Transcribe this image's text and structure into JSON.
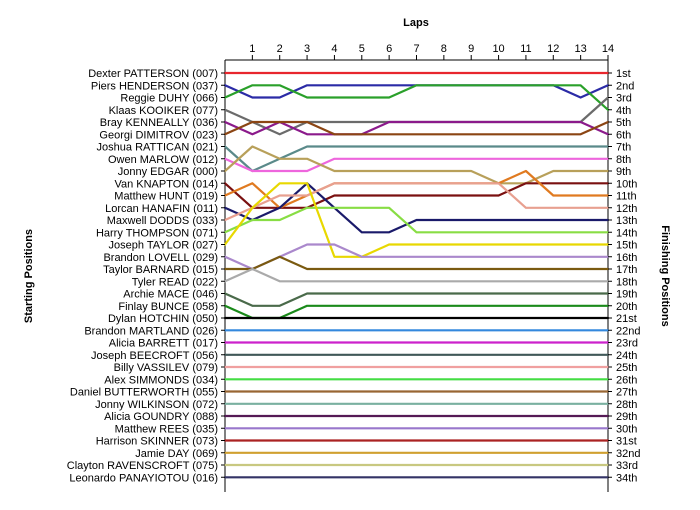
{
  "chart_data": {
    "type": "line",
    "title": "Laps",
    "ylabel_left": "Starting Positions",
    "ylabel_right": "Finishing Positions",
    "x_ticks": [
      1,
      2,
      3,
      4,
      5,
      6,
      7,
      8,
      9,
      10,
      11,
      12,
      13,
      14
    ],
    "x_range": [
      0,
      14
    ],
    "finishing_positions": [
      "1st",
      "2nd",
      "3rd",
      "4th",
      "5th",
      "6th",
      "7th",
      "8th",
      "9th",
      "10th",
      "11th",
      "12th",
      "13th",
      "14th",
      "15th",
      "16th",
      "17th",
      "18th",
      "19th",
      "20th",
      "21st",
      "22nd",
      "23rd",
      "24th",
      "25th",
      "26th",
      "27th",
      "28th",
      "29th",
      "30th",
      "31st",
      "32nd",
      "33rd",
      "34th"
    ],
    "series": [
      {
        "name": "Dexter PATTERSON (007)",
        "color": "#e8262d",
        "positions": [
          1,
          1,
          1,
          1,
          1,
          1,
          1,
          1,
          1,
          1,
          1,
          1,
          1,
          1,
          1
        ]
      },
      {
        "name": "Piers HENDERSON (037)",
        "color": "#2b2ba6",
        "positions": [
          2,
          3,
          3,
          2,
          2,
          2,
          2,
          2,
          2,
          2,
          2,
          2,
          2,
          3,
          2
        ]
      },
      {
        "name": "Reggie DUHY (066)",
        "color": "#2aa02a",
        "positions": [
          3,
          2,
          2,
          3,
          3,
          3,
          3,
          2,
          2,
          2,
          2,
          2,
          2,
          2,
          4
        ]
      },
      {
        "name": "Klaas KOOIKER (077)",
        "color": "#6b6b6b",
        "positions": [
          4,
          5,
          6,
          5,
          5,
          5,
          5,
          5,
          5,
          5,
          5,
          5,
          5,
          5,
          3
        ]
      },
      {
        "name": "Bray KENNEALLY (036)",
        "color": "#8b1a8b",
        "positions": [
          5,
          6,
          5,
          6,
          6,
          6,
          5,
          5,
          5,
          5,
          5,
          5,
          5,
          5,
          6
        ]
      },
      {
        "name": "Georgi DIMITROV (023)",
        "color": "#8b4513",
        "positions": [
          6,
          5,
          5,
          5,
          6,
          6,
          6,
          6,
          6,
          6,
          6,
          6,
          6,
          6,
          5
        ]
      },
      {
        "name": "Joshua RATTICAN (021)",
        "color": "#5a8a8a",
        "positions": [
          7,
          9,
          8,
          7,
          7,
          7,
          7,
          7,
          7,
          7,
          7,
          7,
          7,
          7,
          7
        ]
      },
      {
        "name": "Owen MARLOW (012)",
        "color": "#ee66dd",
        "positions": [
          8,
          9,
          9,
          9,
          8,
          8,
          8,
          8,
          8,
          8,
          8,
          8,
          8,
          8,
          8
        ]
      },
      {
        "name": "Jonny EDGAR (000)",
        "color": "#b8a05a",
        "positions": [
          9,
          7,
          8,
          8,
          9,
          9,
          9,
          9,
          9,
          9,
          10,
          10,
          9,
          9,
          9
        ]
      },
      {
        "name": "Van KNAPTON (014)",
        "color": "#7a1010",
        "positions": [
          10,
          12,
          12,
          12,
          11,
          11,
          11,
          11,
          11,
          11,
          11,
          10,
          10,
          10,
          10
        ]
      },
      {
        "name": "Matthew HUNT (019)",
        "color": "#e07a20",
        "positions": [
          11,
          10,
          12,
          11,
          10,
          10,
          10,
          10,
          10,
          10,
          10,
          9,
          11,
          11,
          11
        ]
      },
      {
        "name": "Lorcan HANAFIN (011)",
        "color": "#1a1a6a",
        "positions": [
          12,
          13,
          12,
          10,
          12,
          14,
          14,
          13,
          13,
          13,
          13,
          13,
          13,
          13,
          13
        ]
      },
      {
        "name": "Maxwell DODDS (033)",
        "color": "#e8a090",
        "positions": [
          13,
          12,
          11,
          11,
          10,
          10,
          10,
          10,
          10,
          10,
          10,
          12,
          12,
          12,
          12
        ]
      },
      {
        "name": "Harry THOMPSON (071)",
        "color": "#88dd44",
        "positions": [
          14,
          13,
          13,
          12,
          12,
          12,
          12,
          14,
          14,
          14,
          14,
          14,
          14,
          14,
          14
        ]
      },
      {
        "name": "Joseph TAYLOR (027)",
        "color": "#e8d800",
        "positions": [
          15,
          12,
          10,
          10,
          16,
          16,
          15,
          15,
          15,
          15,
          15,
          15,
          15,
          15,
          15
        ]
      },
      {
        "name": "Brandon LOVELL (029)",
        "color": "#aa88cc",
        "positions": [
          16,
          17,
          16,
          15,
          15,
          16,
          16,
          16,
          16,
          16,
          16,
          16,
          16,
          16,
          16
        ]
      },
      {
        "name": "Taylor BARNARD (015)",
        "color": "#7a5a10",
        "positions": [
          17,
          17,
          16,
          17,
          17,
          17,
          17,
          17,
          17,
          17,
          17,
          17,
          17,
          17,
          17
        ]
      },
      {
        "name": "Tyler READ (022)",
        "color": "#aaaaaa",
        "positions": [
          18,
          17,
          18,
          18,
          18,
          18,
          18,
          18,
          18,
          18,
          18,
          18,
          18,
          18,
          18
        ]
      },
      {
        "name": "Archie MACE (046)",
        "color": "#4a6a4a",
        "positions": [
          19,
          20,
          20,
          19,
          19,
          19,
          19,
          19,
          19,
          19,
          19,
          19,
          19,
          19,
          19
        ]
      },
      {
        "name": "Finlay BUNCE (058)",
        "color": "#1a8a1a",
        "positions": [
          20,
          21,
          21,
          20,
          20,
          20,
          20,
          20,
          20,
          20,
          20,
          20,
          20,
          20,
          20
        ]
      },
      {
        "name": "Dylan HOTCHIN (050)",
        "color": "#000000",
        "positions": [
          21,
          21,
          21,
          21,
          21,
          21,
          21,
          21,
          21,
          21,
          21,
          21,
          21,
          21,
          21
        ]
      },
      {
        "name": "Brandon MARTLAND (026)",
        "color": "#3388dd",
        "positions": [
          22,
          22,
          22,
          22,
          22,
          22,
          22,
          22,
          22,
          22,
          22,
          22,
          22,
          22,
          22
        ]
      },
      {
        "name": "Alicia BARRETT (017)",
        "color": "#cc22cc",
        "positions": [
          23,
          23,
          23,
          23,
          23,
          23,
          23,
          23,
          23,
          23,
          23,
          23,
          23,
          23,
          23
        ]
      },
      {
        "name": "Joseph BEECROFT (056)",
        "color": "#405858",
        "positions": [
          24,
          24,
          24,
          24,
          24,
          24,
          24,
          24,
          24,
          24,
          24,
          24,
          24,
          24,
          24
        ]
      },
      {
        "name": "Billy VASSILEV (079)",
        "color": "#f0a0a0",
        "positions": [
          25,
          25,
          25,
          25,
          25,
          25,
          25,
          25,
          25,
          25,
          25,
          25,
          25,
          25,
          25
        ]
      },
      {
        "name": "Alex SIMMONDS (034)",
        "color": "#44dd44",
        "positions": [
          26,
          26,
          26,
          26,
          26,
          26,
          26,
          26,
          26,
          26,
          26,
          26,
          26,
          26,
          26
        ]
      },
      {
        "name": "Daniel BUTTERWORTH (055)",
        "color": "#996633",
        "positions": [
          27,
          27,
          27,
          27,
          27,
          27,
          27,
          27,
          27,
          27,
          27,
          27,
          27,
          27,
          27
        ]
      },
      {
        "name": "Jonny WILKINSON (072)",
        "color": "#7ab0a0",
        "positions": [
          28,
          28,
          28,
          28,
          28,
          28,
          28,
          28,
          28,
          28,
          28,
          28,
          28,
          28,
          28
        ]
      },
      {
        "name": "Alicia GOUNDRY (088)",
        "color": "#551a55",
        "positions": [
          29,
          29,
          29,
          29,
          29,
          29,
          29,
          29,
          29,
          29,
          29,
          29,
          29,
          29,
          29
        ]
      },
      {
        "name": "Matthew REES (035)",
        "color": "#9977cc",
        "positions": [
          30,
          30,
          30,
          30,
          30,
          30,
          30,
          30,
          30,
          30,
          30,
          30,
          30,
          30,
          30
        ]
      },
      {
        "name": "Harrison SKINNER (073)",
        "color": "#aa2222",
        "positions": [
          31,
          31,
          31,
          31,
          31,
          31,
          31,
          31,
          31,
          31,
          31,
          31,
          31,
          31,
          31
        ]
      },
      {
        "name": "Jamie DAY (069)",
        "color": "#d0a030",
        "positions": [
          32,
          32,
          32,
          32,
          32,
          32,
          32,
          32,
          32,
          32,
          32,
          32,
          32,
          32,
          32
        ]
      },
      {
        "name": "Clayton RAVENSCROFT (075)",
        "color": "#c8c880",
        "positions": [
          33,
          33,
          33,
          33,
          33,
          33,
          33,
          33,
          33,
          33,
          33,
          33,
          33,
          33,
          33
        ]
      },
      {
        "name": "Leonardo PANAYIOTOU (016)",
        "color": "#333366",
        "positions": [
          34,
          34,
          34,
          34,
          34,
          34,
          34,
          34,
          34,
          34,
          34,
          34,
          34,
          34,
          34
        ]
      }
    ]
  }
}
